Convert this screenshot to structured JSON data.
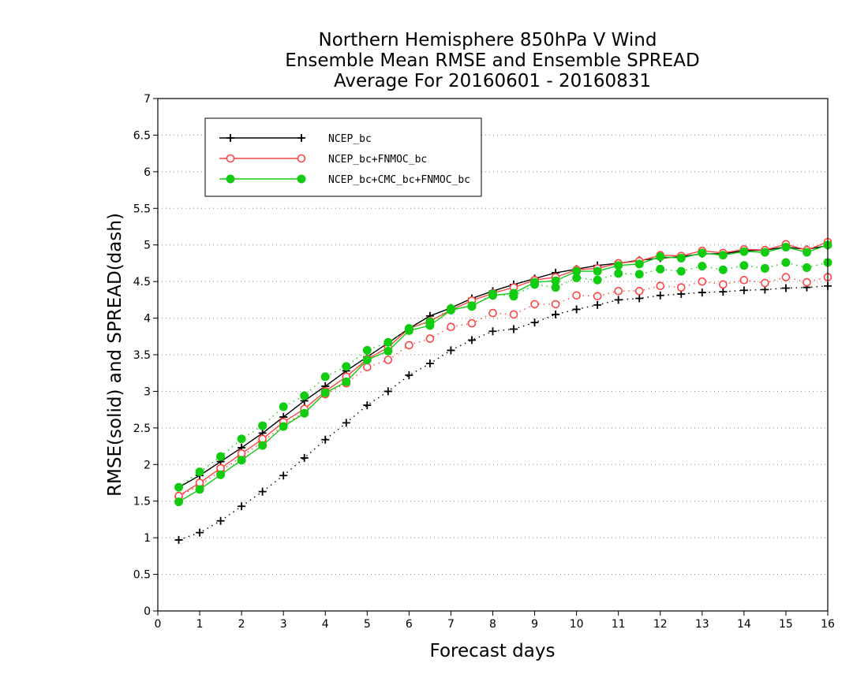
{
  "chart_data": {
    "type": "line",
    "title": [
      "Northern Hemisphere 850hPa V Wind",
      "Ensemble Mean RMSE and Ensemble SPREAD",
      "Average For 20160601 - 20160831"
    ],
    "xlabel": "Forecast days",
    "ylabel": "RMSE(solid) and SPREAD(dash)",
    "xlim": [
      0,
      16
    ],
    "ylim": [
      0,
      7
    ],
    "xticks": [
      "0",
      "1",
      "2",
      "3",
      "4",
      "5",
      "6",
      "7",
      "8",
      "9",
      "10",
      "11",
      "12",
      "13",
      "14",
      "15",
      "16"
    ],
    "yticks": [
      "0",
      "0.5",
      "1",
      "1.5",
      "2",
      "2.5",
      "3",
      "3.5",
      "4",
      "4.5",
      "5",
      "5.5",
      "6",
      "6.5",
      "7"
    ],
    "grid": "horizontal dotted",
    "legend_position": "top-left",
    "x": [
      0.5,
      1,
      1.5,
      2,
      2.5,
      3,
      3.5,
      4,
      4.5,
      5,
      5.5,
      6,
      6.5,
      7,
      7.5,
      8,
      8.5,
      9,
      9.5,
      10,
      10.5,
      11,
      11.5,
      12,
      12.5,
      13,
      13.5,
      14,
      14.5,
      15,
      15.5,
      16
    ],
    "series": [
      {
        "name": "NCEP_bc",
        "color": "#000000",
        "marker": "plus",
        "rmse": [
          1.69,
          1.85,
          2.04,
          2.23,
          2.43,
          2.65,
          2.87,
          3.07,
          3.28,
          3.47,
          3.66,
          3.86,
          4.03,
          4.14,
          4.27,
          4.37,
          4.46,
          4.54,
          4.62,
          4.67,
          4.72,
          4.75,
          4.79,
          4.82,
          4.84,
          4.88,
          4.88,
          4.92,
          4.93,
          4.97,
          4.94,
          4.99
        ],
        "spread": [
          0.97,
          1.07,
          1.23,
          1.43,
          1.63,
          1.85,
          2.09,
          2.34,
          2.57,
          2.81,
          3.0,
          3.22,
          3.38,
          3.56,
          3.7,
          3.82,
          3.85,
          3.94,
          4.05,
          4.12,
          4.18,
          4.25,
          4.27,
          4.31,
          4.33,
          4.35,
          4.36,
          4.38,
          4.39,
          4.41,
          4.42,
          4.44
        ]
      },
      {
        "name": "NCEP_bc+FNMOC_bc",
        "color": "#ff4444",
        "marker": "open-circle",
        "rmse": [
          1.57,
          1.75,
          1.95,
          2.15,
          2.35,
          2.58,
          2.76,
          3.0,
          3.2,
          3.44,
          3.6,
          3.86,
          3.96,
          4.11,
          4.24,
          4.34,
          4.42,
          4.52,
          4.56,
          4.66,
          4.68,
          4.75,
          4.78,
          4.86,
          4.85,
          4.92,
          4.89,
          4.94,
          4.93,
          5.01,
          4.93,
          5.04
        ],
        "spread": [
          1.56,
          1.72,
          1.91,
          2.11,
          2.31,
          2.53,
          2.72,
          2.96,
          3.11,
          3.33,
          3.43,
          3.63,
          3.72,
          3.88,
          3.93,
          4.07,
          4.05,
          4.19,
          4.19,
          4.31,
          4.3,
          4.37,
          4.37,
          4.44,
          4.42,
          4.5,
          4.46,
          4.52,
          4.48,
          4.56,
          4.49,
          4.56
        ]
      },
      {
        "name": "NCEP_bc+CMC_bc+FNMOC_bc",
        "color": "#11cc11",
        "marker": "filled-circle",
        "rmse": [
          1.49,
          1.66,
          1.86,
          2.06,
          2.26,
          2.52,
          2.7,
          2.98,
          3.13,
          3.43,
          3.55,
          3.83,
          3.9,
          4.11,
          4.17,
          4.31,
          4.34,
          4.49,
          4.51,
          4.64,
          4.64,
          4.72,
          4.74,
          4.84,
          4.82,
          4.89,
          4.86,
          4.91,
          4.9,
          4.97,
          4.9,
          5.0
        ],
        "spread": [
          1.69,
          1.9,
          2.11,
          2.35,
          2.53,
          2.79,
          2.94,
          3.2,
          3.34,
          3.56,
          3.67,
          3.86,
          3.95,
          4.13,
          4.16,
          4.33,
          4.3,
          4.46,
          4.42,
          4.55,
          4.52,
          4.61,
          4.6,
          4.67,
          4.64,
          4.71,
          4.66,
          4.72,
          4.68,
          4.76,
          4.69,
          4.76
        ]
      }
    ]
  }
}
